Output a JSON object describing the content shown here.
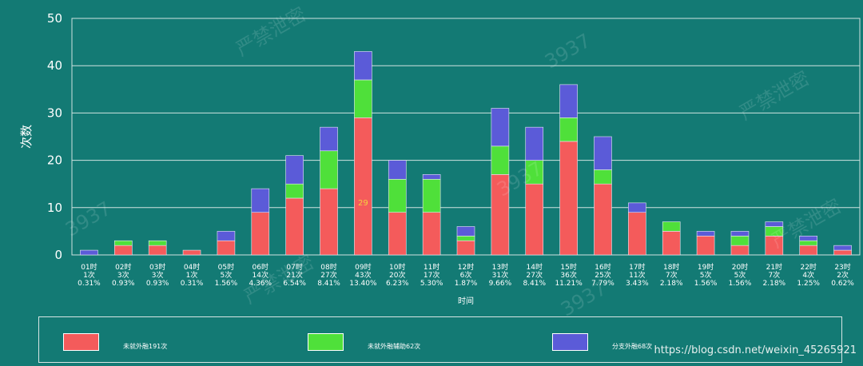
{
  "chart_data": {
    "type": "bar",
    "stacked": true,
    "ylabel": "次数",
    "xlabel": "时间",
    "ylim": [
      0,
      50
    ],
    "yticks": [
      0,
      10,
      20,
      30,
      40,
      50
    ],
    "grid": true,
    "legend_position": "bottom",
    "categories": [
      {
        "hour": "01时",
        "count": "1次",
        "pct": "0.31%"
      },
      {
        "hour": "02时",
        "count": "3次",
        "pct": "0.93%"
      },
      {
        "hour": "03时",
        "count": "3次",
        "pct": "0.93%"
      },
      {
        "hour": "04时",
        "count": "1次",
        "pct": "0.31%"
      },
      {
        "hour": "05时",
        "count": "5次",
        "pct": "1.56%"
      },
      {
        "hour": "06时",
        "count": "14次",
        "pct": "4.36%"
      },
      {
        "hour": "07时",
        "count": "21次",
        "pct": "6.54%"
      },
      {
        "hour": "08时",
        "count": "27次",
        "pct": "8.41%"
      },
      {
        "hour": "09时",
        "count": "43次",
        "pct": "13.40%"
      },
      {
        "hour": "10时",
        "count": "20次",
        "pct": "6.23%"
      },
      {
        "hour": "11时",
        "count": "17次",
        "pct": "5.30%"
      },
      {
        "hour": "12时",
        "count": "6次",
        "pct": "1.87%"
      },
      {
        "hour": "13时",
        "count": "31次",
        "pct": "9.66%"
      },
      {
        "hour": "14时",
        "count": "27次",
        "pct": "8.41%"
      },
      {
        "hour": "15时",
        "count": "36次",
        "pct": "11.21%"
      },
      {
        "hour": "16时",
        "count": "25次",
        "pct": "7.79%"
      },
      {
        "hour": "17时",
        "count": "11次",
        "pct": "3.43%"
      },
      {
        "hour": "18时",
        "count": "7次",
        "pct": "2.18%"
      },
      {
        "hour": "19时",
        "count": "5次",
        "pct": "1.56%"
      },
      {
        "hour": "20时",
        "count": "5次",
        "pct": "1.56%"
      },
      {
        "hour": "21时",
        "count": "7次",
        "pct": "2.18%"
      },
      {
        "hour": "22时",
        "count": "4次",
        "pct": "1.25%"
      },
      {
        "hour": "23时",
        "count": "2次",
        "pct": "0.62%"
      }
    ],
    "series": [
      {
        "name": "未就外融191次",
        "color": "#f45b5b",
        "values": [
          0,
          2,
          2,
          1,
          3,
          9,
          12,
          14,
          29,
          9,
          9,
          3,
          17,
          15,
          24,
          15,
          9,
          5,
          4,
          2,
          4,
          2,
          1
        ]
      },
      {
        "name": "未就外融辅助62次",
        "color": "#4fe03a",
        "values": [
          0,
          1,
          1,
          0,
          0,
          0,
          3,
          8,
          8,
          7,
          7,
          1,
          6,
          5,
          5,
          3,
          0,
          2,
          0,
          2,
          2,
          1,
          0
        ]
      },
      {
        "name": "分支外融68次",
        "color": "#5b5bd8",
        "values": [
          1,
          0,
          0,
          0,
          2,
          5,
          6,
          5,
          6,
          4,
          1,
          2,
          8,
          7,
          7,
          7,
          2,
          0,
          1,
          1,
          1,
          1,
          1
        ]
      }
    ],
    "annotations": [
      {
        "text": "29",
        "category_index": 8,
        "series_index": 0
      }
    ]
  },
  "watermarks": [
    "严禁泄密",
    "3937",
    "严禁泄密",
    "3937",
    "严禁泄密",
    "3937",
    "严禁泄密",
    "3937"
  ],
  "credit": "https://blog.csdn.net/weixin_45265921"
}
